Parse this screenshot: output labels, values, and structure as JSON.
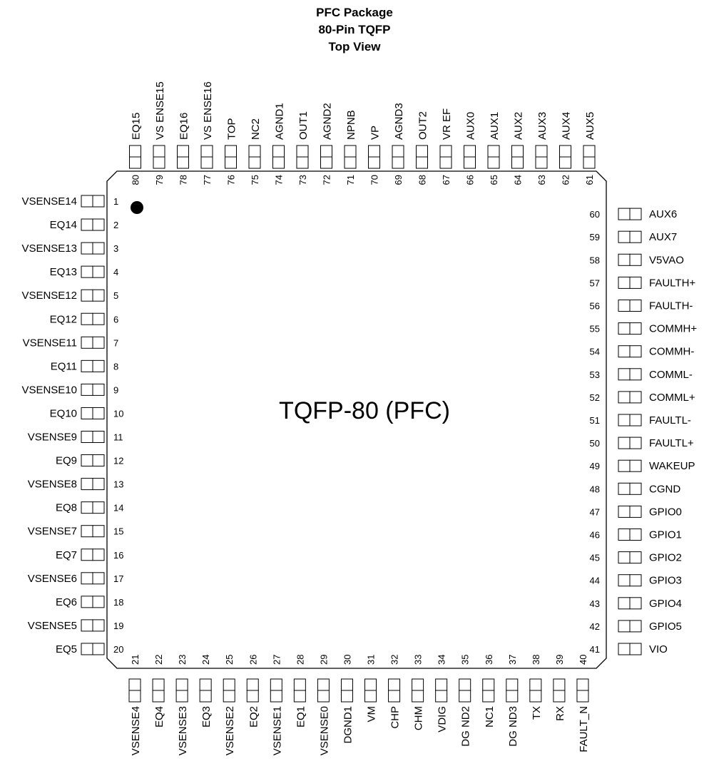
{
  "title_lines": [
    "PFC Package",
    "80-Pin TQFP",
    "Top View"
  ],
  "center_label": "TQFP-80 (PFC)",
  "colors": {
    "stroke": "#000000",
    "background": "#ffffff"
  },
  "pins": {
    "left": [
      {
        "num": "1",
        "name": "VSENSE14"
      },
      {
        "num": "2",
        "name": "EQ14"
      },
      {
        "num": "3",
        "name": "VSENSE13"
      },
      {
        "num": "4",
        "name": "EQ13"
      },
      {
        "num": "5",
        "name": "VSENSE12"
      },
      {
        "num": "6",
        "name": "EQ12"
      },
      {
        "num": "7",
        "name": "VSENSE11"
      },
      {
        "num": "8",
        "name": "EQ11"
      },
      {
        "num": "9",
        "name": "VSENSE10"
      },
      {
        "num": "10",
        "name": "EQ10"
      },
      {
        "num": "11",
        "name": "VSENSE9"
      },
      {
        "num": "12",
        "name": "EQ9"
      },
      {
        "num": "13",
        "name": "VSENSE8"
      },
      {
        "num": "14",
        "name": "EQ8"
      },
      {
        "num": "15",
        "name": "VSENSE7"
      },
      {
        "num": "16",
        "name": "EQ7"
      },
      {
        "num": "17",
        "name": "VSENSE6"
      },
      {
        "num": "18",
        "name": "EQ6"
      },
      {
        "num": "19",
        "name": "VSENSE5"
      },
      {
        "num": "20",
        "name": "EQ5"
      }
    ],
    "bottom": [
      {
        "num": "21",
        "name": "VSENSE4"
      },
      {
        "num": "22",
        "name": "EQ4"
      },
      {
        "num": "23",
        "name": "VSENSE3"
      },
      {
        "num": "24",
        "name": "EQ3"
      },
      {
        "num": "25",
        "name": "VSENSE2"
      },
      {
        "num": "26",
        "name": "EQ2"
      },
      {
        "num": "27",
        "name": "VSENSE1"
      },
      {
        "num": "28",
        "name": "EQ1"
      },
      {
        "num": "29",
        "name": "VSENSE0"
      },
      {
        "num": "30",
        "name": "DGND1"
      },
      {
        "num": "31",
        "name": "VM"
      },
      {
        "num": "32",
        "name": "CHP"
      },
      {
        "num": "33",
        "name": "CHM"
      },
      {
        "num": "34",
        "name": "VDIG"
      },
      {
        "num": "35",
        "name": "DG ND2"
      },
      {
        "num": "36",
        "name": "NC1"
      },
      {
        "num": "37",
        "name": "DG ND3"
      },
      {
        "num": "38",
        "name": "TX"
      },
      {
        "num": "39",
        "name": "RX"
      },
      {
        "num": "40",
        "name": "FAULT_N"
      }
    ],
    "right": [
      {
        "num": "41",
        "name": "VIO"
      },
      {
        "num": "42",
        "name": "GPIO5"
      },
      {
        "num": "43",
        "name": "GPIO4"
      },
      {
        "num": "44",
        "name": "GPIO3"
      },
      {
        "num": "45",
        "name": "GPIO2"
      },
      {
        "num": "46",
        "name": "GPIO1"
      },
      {
        "num": "47",
        "name": "GPIO0"
      },
      {
        "num": "48",
        "name": "CGND"
      },
      {
        "num": "49",
        "name": "WAKEUP"
      },
      {
        "num": "50",
        "name": "FAULTL+"
      },
      {
        "num": "51",
        "name": "FAULTL-"
      },
      {
        "num": "52",
        "name": "COMML+"
      },
      {
        "num": "53",
        "name": "COMML-"
      },
      {
        "num": "54",
        "name": "COMMH-"
      },
      {
        "num": "55",
        "name": "COMMH+"
      },
      {
        "num": "56",
        "name": "FAULTH-"
      },
      {
        "num": "57",
        "name": "FAULTH+"
      },
      {
        "num": "58",
        "name": "V5VAO"
      },
      {
        "num": "59",
        "name": "AUX7"
      },
      {
        "num": "60",
        "name": "AUX6"
      }
    ],
    "top": [
      {
        "num": "61",
        "name": "AUX5"
      },
      {
        "num": "62",
        "name": "AUX4"
      },
      {
        "num": "63",
        "name": "AUX3"
      },
      {
        "num": "64",
        "name": "AUX2"
      },
      {
        "num": "65",
        "name": "AUX1"
      },
      {
        "num": "66",
        "name": "AUX0"
      },
      {
        "num": "67",
        "name": "VR EF"
      },
      {
        "num": "68",
        "name": "OUT2"
      },
      {
        "num": "69",
        "name": "AGND3"
      },
      {
        "num": "70",
        "name": "VP"
      },
      {
        "num": "71",
        "name": "NPNB"
      },
      {
        "num": "72",
        "name": "AGND2"
      },
      {
        "num": "73",
        "name": "OUT1"
      },
      {
        "num": "74",
        "name": "AGND1"
      },
      {
        "num": "75",
        "name": "NC2"
      },
      {
        "num": "76",
        "name": "TOP"
      },
      {
        "num": "77",
        "name": "VS ENSE16"
      },
      {
        "num": "78",
        "name": "EQ16"
      },
      {
        "num": "79",
        "name": "VS ENSE15"
      },
      {
        "num": "80",
        "name": "EQ15"
      }
    ]
  }
}
